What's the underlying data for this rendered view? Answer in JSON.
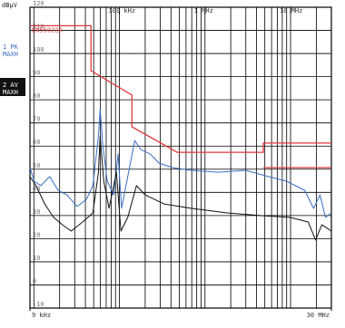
{
  "chart_data": {
    "type": "line",
    "y_label": "dBµV",
    "xscale": "log",
    "xlim": [
      9000,
      30000000
    ],
    "ylim": [
      -10,
      120
    ],
    "yticks": [
      -10,
      0,
      10,
      20,
      30,
      40,
      50,
      60,
      70,
      80,
      90,
      100,
      110,
      120
    ],
    "xticks": [
      {
        "value": 9000,
        "label": "9 kHz"
      },
      {
        "value": 100000,
        "label": "100 kHz"
      },
      {
        "value": 1000000,
        "label": "1 MHz"
      },
      {
        "value": 10000000,
        "label": "10 MHz"
      },
      {
        "value": 30000000,
        "label": "30 MHz"
      }
    ],
    "xgrid": [
      10000,
      20000,
      30000,
      40000,
      50000,
      60000,
      70000,
      80000,
      90000,
      100000,
      200000,
      300000,
      400000,
      500000,
      600000,
      700000,
      800000,
      900000,
      1000000,
      2000000,
      3000000,
      4000000,
      5000000,
      6000000,
      7000000,
      8000000,
      9000000,
      10000000,
      20000000
    ],
    "grid": true,
    "series": [
      {
        "name": "1 PK MAXH",
        "color": "#3a6fc4",
        "x": [
          9000,
          10100,
          12100,
          15300,
          19200,
          24300,
          32100,
          41100,
          48900,
          56800,
          59500,
          63900,
          72200,
          85500,
          96500,
          106000,
          125000,
          151000,
          178000,
          228000,
          291000,
          420000,
          686000,
          1430000,
          2990000,
          5500000,
          9000000,
          14600000,
          18600000,
          22100000,
          25600000,
          30000000
        ],
        "values": [
          50.7,
          44.8,
          42.9,
          46.8,
          40.9,
          38.9,
          33.9,
          37,
          42.9,
          64.4,
          76.1,
          60.5,
          44.8,
          38.9,
          56.6,
          33.1,
          46.8,
          62.4,
          58.5,
          56.6,
          52.6,
          50.7,
          49.5,
          48.7,
          49.5,
          46.8,
          44.8,
          40.9,
          33.1,
          38.9,
          29.2,
          31.1
        ]
      },
      {
        "name": "2 AV MAXH",
        "color": "#111111",
        "x": [
          9000,
          10600,
          13400,
          17000,
          21600,
          27300,
          37100,
          48900,
          56800,
          59500,
          65600,
          75500,
          92200,
          104000,
          125000,
          158000,
          200000,
          332000,
          686000,
          1810000,
          4780000,
          9800000,
          16100000,
          19600000,
          23200000,
          30000000
        ],
        "values": [
          46.8,
          42.9,
          35,
          29.2,
          26,
          23.3,
          27.2,
          31.1,
          48.7,
          64.4,
          44.8,
          33.1,
          48.7,
          23.3,
          29.2,
          42.9,
          38.9,
          35,
          33.1,
          31.1,
          29.9,
          29.2,
          27.2,
          19.4,
          26,
          23.3
        ]
      }
    ],
    "limits": [
      {
        "name": "EN55022A",
        "color": "#e0393a",
        "x": [
          9000,
          46500,
          46500,
          140000,
          140000,
          474000,
          4800000,
          4800000,
          30000000
        ],
        "values": [
          112,
          112,
          92.6,
          82,
          68.3,
          57.3,
          57.3,
          61.3,
          61.3
        ]
      },
      {
        "color": "#e0393a",
        "x": [
          4800000,
          30000000
        ],
        "values": [
          50.7,
          50.7
        ]
      }
    ]
  }
}
